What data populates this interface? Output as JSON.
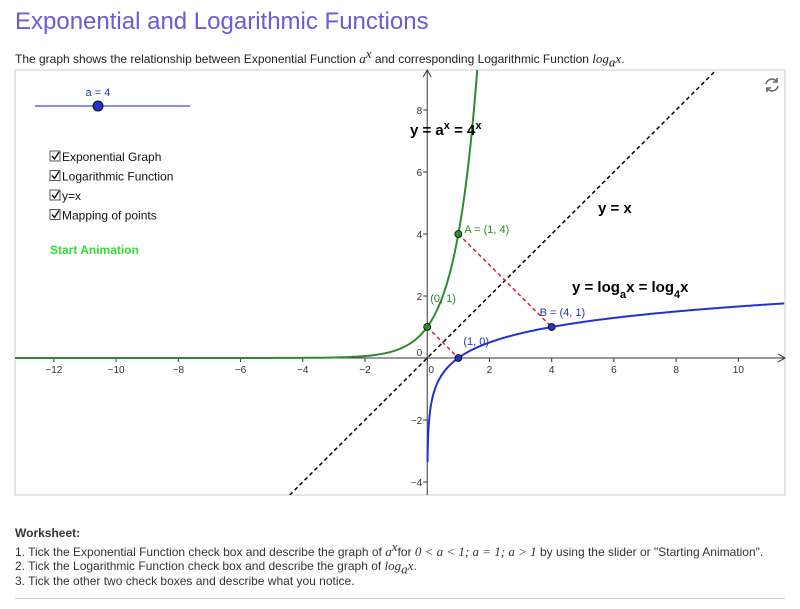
{
  "header": {
    "title": "Exponential and Logarithmic Functions",
    "subtitle": [
      "The graph shows the relationship between Exponential Function ",
      "a",
      "x",
      " and corresponding Logarithmic Function ",
      "log",
      "a",
      "x",
      "."
    ]
  },
  "graph": {
    "a": 4,
    "slider_label": "a = 4",
    "checkboxes": [
      "Exponential Graph",
      "Logarithmic Function",
      "y=x",
      "Mapping of points"
    ],
    "button": "Start Animation",
    "xlim": [
      -13.25,
      11.5
    ],
    "ylim": [
      -4.42,
      9.29
    ],
    "xticks": [
      {
        "value": -12,
        "label": "−12"
      },
      {
        "value": -10,
        "label": "−10"
      },
      {
        "value": -8,
        "label": "−8"
      },
      {
        "value": -6,
        "label": "−6"
      },
      {
        "value": -4,
        "label": "−4"
      },
      {
        "value": -2,
        "label": "−2"
      },
      0,
      2,
      4,
      6,
      8,
      10
    ],
    "yticks": [
      {
        "value": -4,
        "label": "−4"
      },
      {
        "value": -2,
        "label": "−2"
      },
      0,
      2,
      4,
      6,
      8
    ],
    "exp_color": "#2e8b2e",
    "log_color": "#2233cc",
    "exp_label": [
      "y = a",
      "x",
      " = 4",
      "x"
    ],
    "line_label": "y = x",
    "log_label": [
      "y = log",
      "a",
      "x = log",
      "4",
      "x"
    ],
    "points": [
      {
        "label": "A = (1, 4)",
        "x": 1,
        "y": 4,
        "color": "#2e8b2e"
      },
      {
        "label": "B = (4, 1)",
        "x": 4,
        "y": 1,
        "color": "#2233cc"
      },
      {
        "label": "(0, 1)",
        "x": 0,
        "y": 1,
        "color": "#2e8b2e"
      },
      {
        "label": "(1, 0)",
        "x": 1,
        "y": 0,
        "color": "#2233cc"
      }
    ],
    "mappings": [
      [
        0,
        1
      ],
      [
        2,
        3
      ]
    ]
  },
  "worksheet": {
    "heading": "Worksheet:",
    "line1": [
      "1. Tick the Exponential Function check box and describe the graph of ",
      "a",
      "x",
      "for ",
      "0 < a < 1; a = 1; a > 1",
      " by using the slider or \"Starting Animation\"."
    ],
    "line2": [
      "2. Tick the Logarithmic Function check box and describe the graph of ",
      "log",
      "a",
      "x",
      "."
    ],
    "line3": "3. Tick the other two check boxes and describe what you notice."
  }
}
